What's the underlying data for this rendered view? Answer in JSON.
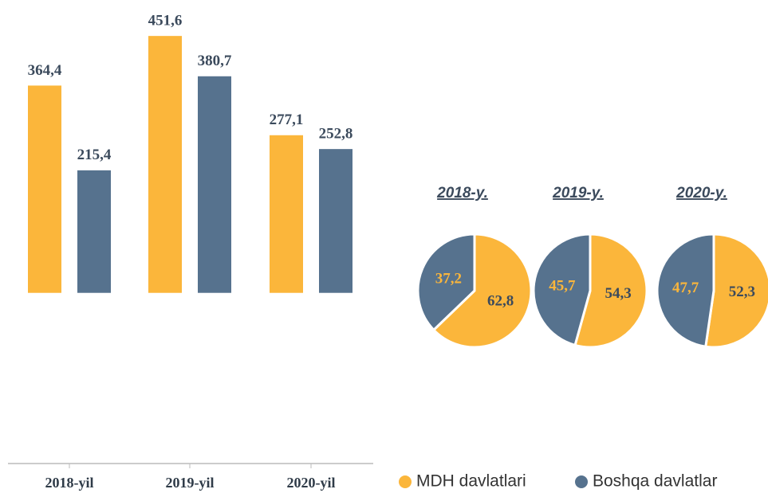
{
  "chart_data": [
    {
      "type": "bar",
      "categories": [
        "2018-yil",
        "2019-yil",
        "2020-yil"
      ],
      "series": [
        {
          "name": "MDH davlatlari",
          "color": "#fbb63b",
          "values": [
            364.4,
            451.6,
            277.1
          ],
          "value_labels": [
            "364,4",
            "451,6",
            "277,1"
          ]
        },
        {
          "name": "Boshqa davlatlar",
          "color": "#56728e",
          "values": [
            215.4,
            380.7,
            252.8
          ],
          "value_labels": [
            "215,4",
            "380,7",
            "252,8"
          ]
        }
      ],
      "ylim": [
        -300,
        470
      ]
    },
    {
      "type": "pie",
      "title": "2018-y.",
      "values": [
        62.8,
        37.2
      ],
      "value_labels": [
        "62,8",
        "37,2"
      ],
      "colors": [
        "#fbb63b",
        "#56728e"
      ]
    },
    {
      "type": "pie",
      "title": "2019-y.",
      "values": [
        54.3,
        45.7
      ],
      "value_labels": [
        "54,3",
        "45,7"
      ],
      "colors": [
        "#fbb63b",
        "#56728e"
      ]
    },
    {
      "type": "pie",
      "title": "2020-y.",
      "values": [
        52.3,
        47.7
      ],
      "value_labels": [
        "52,3",
        "47,7"
      ],
      "colors": [
        "#fbb63b",
        "#56728e"
      ]
    }
  ]
}
